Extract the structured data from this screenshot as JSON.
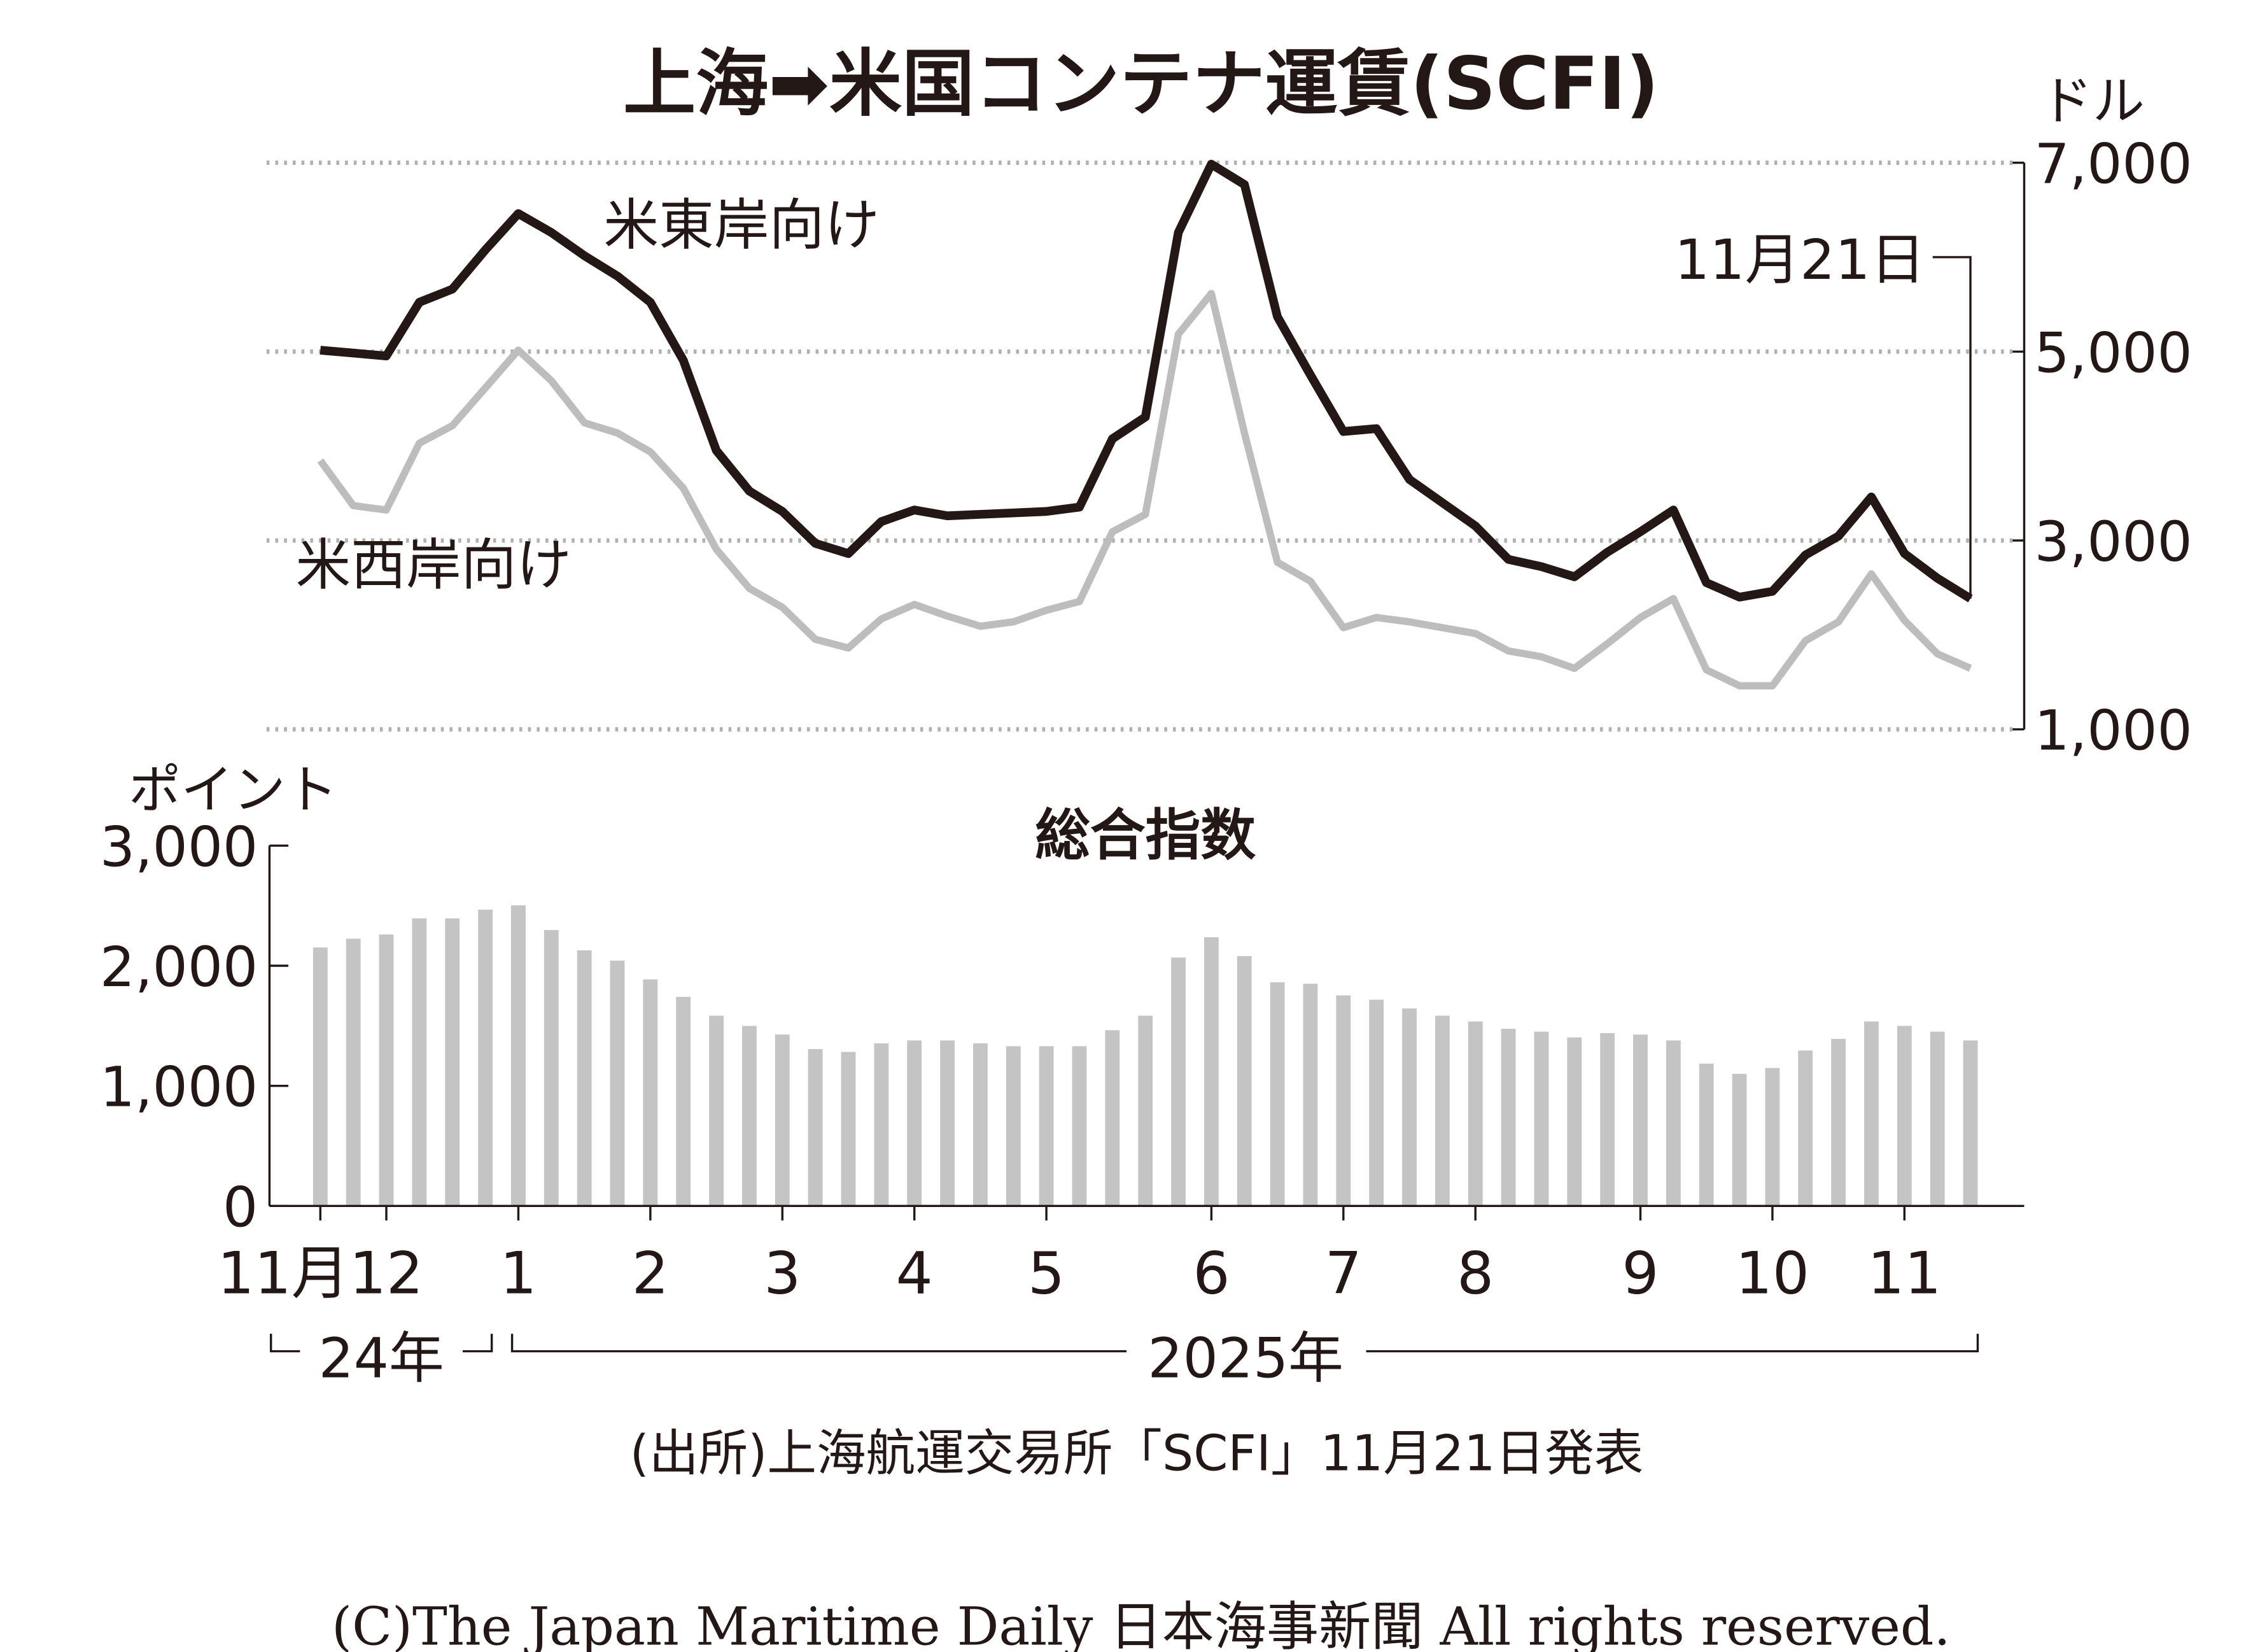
{
  "title": "上海➡米国コンテナ運賃(SCFI)",
  "source": "(出所)上海航運交易所「SCFI」11月21日発表",
  "copyright": "(C)The Japan Maritime Daily 日本海事新聞 All rights reserved.",
  "colors": {
    "east": "#231815",
    "west": "#bdbdbd",
    "bar": "#c4c4c4",
    "grid": "#b0b0b0"
  },
  "chart_data": [
    {
      "type": "line",
      "title": "上海➡米国コンテナ運賃(SCFI)",
      "ylabel": "ドル",
      "ylim": [
        1000,
        7000
      ],
      "yticks": [
        "1,000",
        "3,000",
        "5,000",
        "7,000"
      ],
      "ytick_values": [
        1000,
        3000,
        5000,
        7000
      ],
      "grid": true,
      "annotation": "11月21日",
      "series": [
        {
          "name": "米東岸向け",
          "values": [
            5015,
            4985,
            4954,
            5523,
            5662,
            6077,
            6462,
            6262,
            6015,
            5800,
            5523,
            4908,
            3954,
            3523,
            3308,
            2969,
            2862,
            3200,
            3323,
            3262,
            3277,
            3292,
            3308,
            3354,
            4077,
            4308,
            6262,
            6985,
            6769,
            5369,
            4754,
            4154,
            4185,
            3646,
            3400,
            3154,
            2800,
            2723,
            2615,
            2877,
            3092,
            3323,
            2554,
            2400,
            2462,
            2846,
            3046,
            3462,
            2862,
            2600,
            2385
          ]
        },
        {
          "name": "米西岸向け",
          "values": [
            3846,
            3369,
            3323,
            4031,
            4215,
            4615,
            5015,
            4692,
            4246,
            4138,
            3938,
            3554,
            2908,
            2492,
            2292,
            1954,
            1862,
            2169,
            2323,
            2200,
            2092,
            2138,
            2262,
            2354,
            3092,
            3277,
            5185,
            5615,
            4138,
            2769,
            2569,
            2077,
            2185,
            2138,
            2077,
            2015,
            1831,
            1769,
            1646,
            1908,
            2185,
            2385,
            1631,
            1462,
            1462,
            1938,
            2138,
            2646,
            2154,
            1800,
            1646
          ]
        }
      ]
    },
    {
      "type": "bar",
      "title": "総合指数",
      "ylabel": "ポイント",
      "ylim": [
        0,
        3000
      ],
      "yticks": [
        "0",
        "1,000",
        "2,000",
        "3,000"
      ],
      "ytick_values": [
        0,
        1000,
        2000,
        3000
      ],
      "values": [
        2152,
        2225,
        2260,
        2394,
        2394,
        2467,
        2503,
        2297,
        2128,
        2043,
        1886,
        1741,
        1584,
        1499,
        1427,
        1306,
        1282,
        1354,
        1378,
        1378,
        1354,
        1330,
        1330,
        1330,
        1463,
        1584,
        2068,
        2237,
        2080,
        1862,
        1850,
        1753,
        1717,
        1644,
        1584,
        1536,
        1475,
        1451,
        1403,
        1439,
        1427,
        1378,
        1185,
        1100,
        1149,
        1294,
        1391,
        1536,
        1499,
        1451,
        1378
      ],
      "xticks": [
        {
          "index": 0,
          "label": "11月"
        },
        {
          "index": 2,
          "label": "12"
        },
        {
          "index": 6,
          "label": "1"
        },
        {
          "index": 10,
          "label": "2"
        },
        {
          "index": 14,
          "label": "3"
        },
        {
          "index": 18,
          "label": "4"
        },
        {
          "index": 22,
          "label": "5"
        },
        {
          "index": 27,
          "label": "6"
        },
        {
          "index": 31,
          "label": "7"
        },
        {
          "index": 35,
          "label": "8"
        },
        {
          "index": 40,
          "label": "9"
        },
        {
          "index": 44,
          "label": "10"
        },
        {
          "index": 48,
          "label": "11"
        }
      ],
      "year_labels": [
        "24年",
        "2025年"
      ]
    }
  ]
}
